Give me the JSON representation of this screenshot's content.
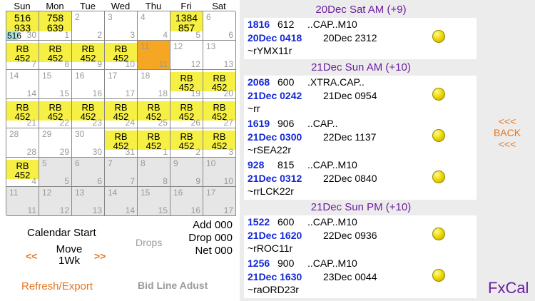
{
  "calendar": {
    "weekdays": [
      "Sun",
      "Mon",
      "Tue",
      "Wed",
      "Thu",
      "Fri",
      "Sat"
    ],
    "weeks": [
      [
        {
          "style": "yellow",
          "lines": [
            "516",
            "933"
          ],
          "tag": "516",
          "corner": "30"
        },
        {
          "style": "yellow",
          "lines": [
            "758",
            "639"
          ],
          "corner": "1"
        },
        {
          "style": "white",
          "top": "2",
          "corner": "2"
        },
        {
          "style": "white",
          "top": "3",
          "corner": "3"
        },
        {
          "style": "white",
          "top": "4",
          "corner": "4"
        },
        {
          "style": "yellow",
          "lines": [
            "1384",
            "857"
          ],
          "corner": "5"
        },
        {
          "style": "white",
          "top": "6",
          "corner": "6"
        }
      ],
      [
        {
          "style": "yellow-rb",
          "lines": [
            "RB",
            "452"
          ],
          "corner": "7"
        },
        {
          "style": "yellow-rb",
          "lines": [
            "RB",
            "452"
          ],
          "corner": "8"
        },
        {
          "style": "yellow-rb",
          "lines": [
            "RB",
            "452"
          ],
          "corner": "9"
        },
        {
          "style": "yellow-rb",
          "lines": [
            "RB",
            "452"
          ],
          "corner": "10"
        },
        {
          "style": "orange",
          "top": "11",
          "corner": "11"
        },
        {
          "style": "white",
          "top": "12",
          "corner": "12"
        },
        {
          "style": "white",
          "top": "13",
          "corner": "13"
        }
      ],
      [
        {
          "style": "white",
          "top": "14",
          "corner": "14"
        },
        {
          "style": "white",
          "top": "15",
          "corner": "15"
        },
        {
          "style": "white",
          "top": "16",
          "corner": "16"
        },
        {
          "style": "white",
          "top": "17",
          "corner": "17"
        },
        {
          "style": "white",
          "top": "18",
          "corner": "18"
        },
        {
          "style": "yellow-rb",
          "lines": [
            "RB",
            "452"
          ],
          "corner": "19"
        },
        {
          "style": "yellow-rb",
          "lines": [
            "RB",
            "452"
          ],
          "corner": "20"
        }
      ],
      [
        {
          "style": "yellow-rb",
          "lines": [
            "RB",
            "452"
          ],
          "corner": "21"
        },
        {
          "style": "yellow-rb",
          "lines": [
            "RB",
            "452"
          ],
          "corner": "22"
        },
        {
          "style": "yellow-rb",
          "lines": [
            "RB",
            "452"
          ],
          "corner": "23"
        },
        {
          "style": "yellow-rb",
          "lines": [
            "RB",
            "452"
          ],
          "corner": "24"
        },
        {
          "style": "yellow-rb",
          "lines": [
            "RB",
            "452"
          ],
          "corner": "25"
        },
        {
          "style": "yellow-rb",
          "lines": [
            "RB",
            "452"
          ],
          "corner": "26"
        },
        {
          "style": "yellow-rb",
          "lines": [
            "RB",
            "452"
          ],
          "corner": "27"
        }
      ],
      [
        {
          "style": "white",
          "top": "28",
          "corner": "28"
        },
        {
          "style": "white",
          "top": "29",
          "corner": "29"
        },
        {
          "style": "white",
          "top": "30",
          "corner": "30"
        },
        {
          "style": "yellow-rb",
          "lines": [
            "RB",
            "452"
          ],
          "corner": "31"
        },
        {
          "style": "yellow-rb",
          "lines": [
            "RB",
            "452"
          ],
          "corner": "1"
        },
        {
          "style": "yellow-rb",
          "lines": [
            "RB",
            "452"
          ],
          "corner": "2"
        },
        {
          "style": "yellow-rb",
          "lines": [
            "RB",
            "452"
          ],
          "corner": "3"
        }
      ],
      [
        {
          "style": "yellow-rb",
          "lines": [
            "RB",
            "452"
          ],
          "corner": "4"
        },
        {
          "style": "grey",
          "top": "5",
          "corner": "5"
        },
        {
          "style": "grey",
          "top": "6",
          "corner": "6"
        },
        {
          "style": "grey",
          "top": "7",
          "corner": "7"
        },
        {
          "style": "grey",
          "top": "8",
          "corner": "8"
        },
        {
          "style": "grey",
          "top": "9",
          "corner": "9"
        },
        {
          "style": "grey",
          "top": "10",
          "corner": "10"
        }
      ],
      [
        {
          "style": "grey",
          "top": "11",
          "corner": "11"
        },
        {
          "style": "grey",
          "top": "12",
          "corner": "12"
        },
        {
          "style": "grey",
          "top": "13",
          "corner": "13"
        },
        {
          "style": "grey",
          "top": "14",
          "corner": "14"
        },
        {
          "style": "grey",
          "top": "15",
          "corner": "15"
        },
        {
          "style": "grey",
          "top": "16",
          "corner": "16"
        },
        {
          "style": "grey",
          "top": "17",
          "corner": "17"
        }
      ]
    ]
  },
  "controls": {
    "calendar_start": "Calendar Start",
    "drops_label": "Drops",
    "add": "Add 000",
    "drop": "Drop 000",
    "net": "Net 000",
    "prev": "<<",
    "move_line1": "Move",
    "move_line2": "1Wk",
    "next": ">>",
    "refresh_export": "Refresh/Export",
    "bid_line_adjust": "Bid Line Adust"
  },
  "sections": [
    {
      "header": "20Dec Sat AM   (+9)",
      "trips": [
        {
          "id": "1816",
          "pay": "612",
          "route": "..CAP..M10",
          "dep": "20Dec 0418",
          "arr": "20Dec 2312",
          "code": "~rYMX11r"
        }
      ]
    },
    {
      "header": "21Dec Sun AM   (+10)",
      "trips": [
        {
          "id": "2068",
          "pay": "600",
          "route": ".XTRA.CAP..",
          "dep": "21Dec 0242",
          "arr": "21Dec 0954",
          "code": "~rr"
        },
        {
          "id": "1619",
          "pay": "906",
          "route": "..CAP..",
          "dep": "21Dec 0300",
          "arr": "22Dec 1137",
          "code": "~rSEA22r"
        },
        {
          "id": "928",
          "pay": "815",
          "route": "..CAP..M10",
          "dep": "21Dec 0312",
          "arr": "22Dec 0840",
          "code": "~rrLCK22r"
        }
      ]
    },
    {
      "header": "21Dec Sun PM   (+10)",
      "trips": [
        {
          "id": "1522",
          "pay": "600",
          "route": "..CAP..M10",
          "dep": "21Dec 1620",
          "arr": "22Dec 0936",
          "code": "~rROC11r"
        },
        {
          "id": "1256",
          "pay": "900",
          "route": "..CAP..M10",
          "dep": "21Dec 1630",
          "arr": "23Dec 0044",
          "code": "~raORD23r"
        }
      ]
    }
  ],
  "side": {
    "back_top": "<<<",
    "back_label": "BACK",
    "back_bottom": "<<<",
    "brand": "FxCal"
  },
  "colors": {
    "highlight": "#f5f043",
    "today": "#f5a623",
    "tag": "#a9e5e0",
    "accent_orange": "#e8741a",
    "accent_purple": "#6b1fa0",
    "trip_blue": "#1428d8"
  }
}
